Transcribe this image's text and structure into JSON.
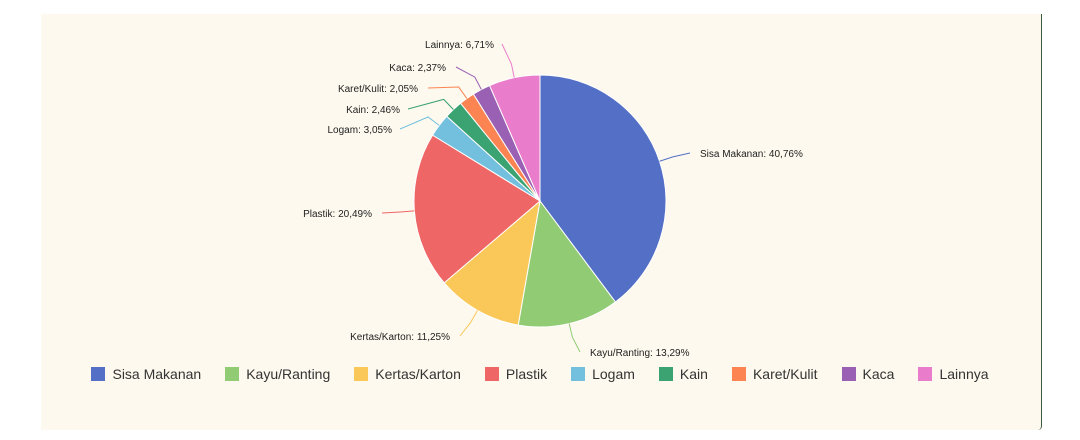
{
  "chart_data": {
    "type": "pie",
    "title": "",
    "slices": [
      {
        "name": "Sisa Makanan",
        "value": 40.76,
        "label": "Sisa Makanan: 40,76%",
        "color": "#5470c6"
      },
      {
        "name": "Kayu/Ranting",
        "value": 13.29,
        "label": "Kayu/Ranting: 13,29%",
        "color": "#91cc75"
      },
      {
        "name": "Kertas/Karton",
        "value": 11.25,
        "label": "Kertas/Karton: 11,25%",
        "color": "#fac858"
      },
      {
        "name": "Plastik",
        "value": 20.49,
        "label": "Plastik: 20,49%",
        "color": "#ee6666"
      },
      {
        "name": "Logam",
        "value": 3.05,
        "label": "Logam: 3,05%",
        "color": "#73c0de"
      },
      {
        "name": "Kain",
        "value": 2.46,
        "label": "Kain: 2,46%",
        "color": "#3ba272"
      },
      {
        "name": "Karet/Kulit",
        "value": 2.05,
        "label": "Karet/Kulit: 2,05%",
        "color": "#fc8452"
      },
      {
        "name": "Kaca",
        "value": 2.37,
        "label": "Kaca: 2,37%",
        "color": "#9a60b4"
      },
      {
        "name": "Lainnya",
        "value": 6.71,
        "label": "Lainnya: 6,71%",
        "color": "#ea7ccc"
      }
    ],
    "legend_position": "bottom"
  }
}
